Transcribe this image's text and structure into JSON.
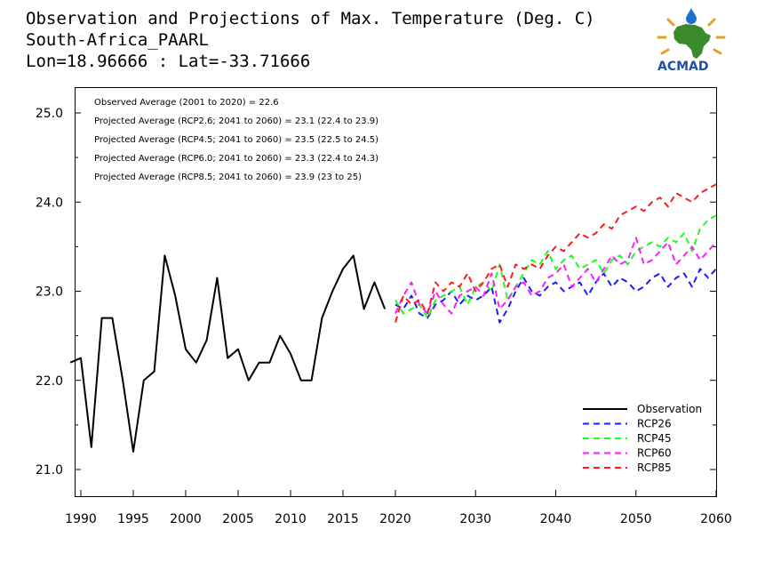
{
  "header": {
    "title_lines": [
      "Observation and Projections of Max. Temperature (Deg. C)",
      "South-Africa_PAARL",
      "Lon=18.96666 : Lat=-33.71666"
    ]
  },
  "logo": {
    "text": "ACMAD"
  },
  "annotations": [
    "Observed Average (2001 to 2020) = 22.6",
    "Projected Average (RCP2.6; 2041 to 2060) = 23.1 (22.4 to 23.9)",
    "Projected Average (RCP4.5; 2041 to 2060) = 23.5 (22.5 to 24.5)",
    "Projected Average (RCP6.0; 2041 to 2060) = 23.3 (22.4 to 24.3)",
    "Projected Average (RCP8.5; 2041 to 2060) = 23.9 (23 to 25)"
  ],
  "legend": [
    {
      "label": "Observation",
      "color": "#000000",
      "dash": "solid"
    },
    {
      "label": "RCP26",
      "color": "#1a1aff",
      "dash": "dashed"
    },
    {
      "label": "RCP45",
      "color": "#1aff1a",
      "dash": "dashed"
    },
    {
      "label": "RCP60",
      "color": "#ff1aff",
      "dash": "dashed"
    },
    {
      "label": "RCP85",
      "color": "#ff1a1a",
      "dash": "dashed"
    }
  ],
  "chart_data": {
    "type": "line",
    "title": "Observation and Projections of Max. Temperature (Deg. C)",
    "xlim": [
      1990,
      2060
    ],
    "ylim": [
      20.65,
      25.3
    ],
    "legend_position": "bottom-right",
    "x_ticks_early": [
      1990,
      1995,
      2000,
      2005,
      2010,
      2015,
      2020
    ],
    "x_ticks_late": [
      2030,
      2040,
      2050,
      2060
    ],
    "y_ticks": [
      "21.0",
      "22.0",
      "23.0",
      "24.0",
      "25.0"
    ],
    "series": [
      {
        "name": "Observation",
        "color": "#000000",
        "x": [
          1989,
          1990,
          1991,
          1992,
          1993,
          1994,
          1995,
          1996,
          1997,
          1998,
          1999,
          2000,
          2001,
          2002,
          2003,
          2004,
          2005,
          2006,
          2007,
          2008,
          2009,
          2010,
          2011,
          2012,
          2013,
          2014,
          2015,
          2016,
          2017,
          2018,
          2019
        ],
        "values": [
          22.2,
          22.25,
          21.25,
          22.7,
          22.7,
          22.0,
          21.2,
          22.0,
          22.1,
          23.4,
          22.95,
          22.35,
          22.2,
          22.45,
          23.15,
          22.25,
          22.35,
          22.0,
          22.2,
          22.2,
          22.5,
          22.3,
          22.0,
          22.0,
          22.7,
          23.0,
          23.25,
          23.4,
          22.8,
          23.1,
          22.8
        ]
      },
      {
        "name": "RCP26",
        "color": "#1a1aff",
        "x": [
          2020,
          2021,
          2022,
          2023,
          2024,
          2025,
          2026,
          2027,
          2028,
          2029,
          2030,
          2031,
          2032,
          2033,
          2034,
          2035,
          2036,
          2037,
          2038,
          2039,
          2040,
          2041,
          2042,
          2043,
          2044,
          2045,
          2046,
          2047,
          2048,
          2049,
          2050,
          2051,
          2052,
          2053,
          2054,
          2055,
          2056,
          2057,
          2058,
          2059,
          2060
        ],
        "values": [
          22.85,
          22.8,
          22.95,
          22.75,
          22.7,
          22.85,
          22.9,
          23.0,
          22.85,
          22.95,
          22.9,
          22.95,
          23.05,
          22.65,
          22.8,
          23.0,
          23.15,
          23.0,
          22.95,
          23.05,
          23.1,
          23.0,
          23.05,
          23.1,
          22.95,
          23.1,
          23.2,
          23.05,
          23.15,
          23.1,
          23.0,
          23.05,
          23.15,
          23.2,
          23.05,
          23.15,
          23.2,
          23.05,
          23.25,
          23.15,
          23.25
        ]
      },
      {
        "name": "RCP45",
        "color": "#1aff1a",
        "x": [
          2020,
          2021,
          2022,
          2023,
          2024,
          2025,
          2026,
          2027,
          2028,
          2029,
          2030,
          2031,
          2032,
          2033,
          2034,
          2035,
          2036,
          2037,
          2038,
          2039,
          2040,
          2041,
          2042,
          2043,
          2044,
          2045,
          2046,
          2047,
          2048,
          2049,
          2050,
          2051,
          2052,
          2053,
          2054,
          2055,
          2056,
          2057,
          2058,
          2059,
          2060
        ],
        "values": [
          22.9,
          22.75,
          22.8,
          22.85,
          22.7,
          22.9,
          22.95,
          23.0,
          23.05,
          22.85,
          23.05,
          23.1,
          23.0,
          23.3,
          22.9,
          23.05,
          23.2,
          23.35,
          23.3,
          23.45,
          23.25,
          23.35,
          23.4,
          23.25,
          23.3,
          23.35,
          23.2,
          23.35,
          23.4,
          23.3,
          23.45,
          23.5,
          23.55,
          23.5,
          23.6,
          23.55,
          23.65,
          23.45,
          23.7,
          23.8,
          23.85
        ]
      },
      {
        "name": "RCP60",
        "color": "#ff1aff",
        "x": [
          2020,
          2021,
          2022,
          2023,
          2024,
          2025,
          2026,
          2027,
          2028,
          2029,
          2030,
          2031,
          2032,
          2033,
          2034,
          2035,
          2036,
          2037,
          2038,
          2039,
          2040,
          2041,
          2042,
          2043,
          2044,
          2045,
          2046,
          2047,
          2048,
          2049,
          2050,
          2051,
          2052,
          2053,
          2054,
          2055,
          2056,
          2057,
          2058,
          2059,
          2060
        ],
        "values": [
          22.75,
          22.95,
          23.1,
          22.85,
          22.75,
          23.0,
          22.85,
          22.75,
          22.95,
          23.0,
          23.05,
          22.95,
          23.2,
          22.8,
          22.9,
          23.05,
          23.1,
          22.95,
          23.0,
          23.15,
          23.2,
          23.3,
          23.05,
          23.15,
          23.25,
          23.1,
          23.25,
          23.4,
          23.3,
          23.35,
          23.6,
          23.3,
          23.35,
          23.45,
          23.55,
          23.3,
          23.4,
          23.5,
          23.35,
          23.45,
          23.55
        ]
      },
      {
        "name": "RCP85",
        "color": "#ff1a1a",
        "x": [
          2020,
          2021,
          2022,
          2023,
          2024,
          2025,
          2026,
          2027,
          2028,
          2029,
          2030,
          2031,
          2032,
          2033,
          2034,
          2035,
          2036,
          2037,
          2038,
          2039,
          2040,
          2041,
          2042,
          2043,
          2044,
          2045,
          2046,
          2047,
          2048,
          2049,
          2050,
          2051,
          2052,
          2053,
          2054,
          2055,
          2056,
          2057,
          2058,
          2059,
          2060
        ],
        "values": [
          22.65,
          22.95,
          22.85,
          22.9,
          22.75,
          23.1,
          23.0,
          23.1,
          23.05,
          23.2,
          23.0,
          23.1,
          23.25,
          23.3,
          23.05,
          23.3,
          23.25,
          23.3,
          23.25,
          23.4,
          23.5,
          23.45,
          23.55,
          23.65,
          23.6,
          23.65,
          23.75,
          23.7,
          23.85,
          23.9,
          23.95,
          23.9,
          24.0,
          24.05,
          23.95,
          24.1,
          24.05,
          24.0,
          24.1,
          24.15,
          24.2
        ]
      }
    ]
  }
}
